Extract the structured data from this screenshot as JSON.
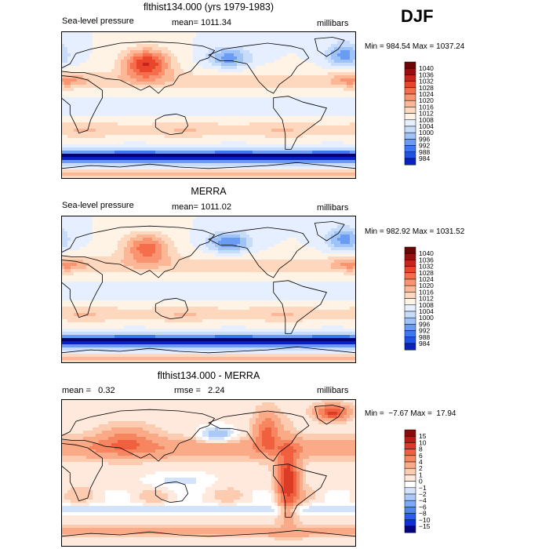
{
  "season": "DJF",
  "colors": {
    "pressure_scale": [
      "#08006e",
      "#0a20c0",
      "#1f52e6",
      "#3c78f0",
      "#6a9cf4",
      "#9fc2f7",
      "#c7dcfa",
      "#e6efff",
      "#fff3e6",
      "#fdd8bf",
      "#fcb896",
      "#fa9470",
      "#f56d4a",
      "#e8452a",
      "#c7241a",
      "#9c0d0d",
      "#6e0505"
    ],
    "anomaly_scale": [
      "#050580",
      "#0d2ed8",
      "#2c5ce9",
      "#5186f0",
      "#7eaaf5",
      "#aac8f8",
      "#d3e3fb",
      "#ffffff",
      "#ffe9dc",
      "#fdcbb0",
      "#fbaa87",
      "#f78560",
      "#f0603f",
      "#dc3b25",
      "#b81c17",
      "#8e0909"
    ]
  },
  "chart_data": [
    {
      "type": "heatmap",
      "title": "flthist134.000 (yrs 1979-1983)",
      "left_label": "Sea-level pressure",
      "mean_label": "mean= 1011.34",
      "units": "millibars",
      "stats": "Min = 984.54 Max = 1037.24",
      "min": 984.54,
      "max": 1037.24,
      "mean": 1011.34,
      "colorbar_ticks": [
        "1040",
        "1036",
        "1032",
        "1028",
        "1024",
        "1020",
        "1016",
        "1012",
        "1008",
        "1004",
        "1000",
        "996",
        "992",
        "988",
        "984"
      ],
      "colorbar_values": [
        1040,
        1036,
        1032,
        1028,
        1024,
        1020,
        1016,
        1012,
        1008,
        1004,
        1000,
        996,
        992,
        988,
        984
      ]
    },
    {
      "type": "heatmap",
      "title": "MERRA",
      "left_label": "Sea-level pressure",
      "mean_label": "mean= 1011.02",
      "units": "millibars",
      "stats": "Min = 982.92 Max = 1031.52",
      "min": 982.92,
      "max": 1031.52,
      "mean": 1011.02,
      "colorbar_ticks": [
        "1040",
        "1036",
        "1032",
        "1028",
        "1024",
        "1020",
        "1016",
        "1012",
        "1008",
        "1004",
        "1000",
        "996",
        "992",
        "988",
        "984"
      ],
      "colorbar_values": [
        1040,
        1036,
        1032,
        1028,
        1024,
        1020,
        1016,
        1012,
        1008,
        1004,
        1000,
        996,
        992,
        988,
        984
      ]
    },
    {
      "type": "heatmap",
      "title": "flthist134.000 - MERRA",
      "left_label": "mean =   0.32",
      "mid_label": "rmse =   2.24",
      "units": "millibars",
      "stats": "Min =  −7.67 Max =  17.94",
      "min": -7.67,
      "max": 17.94,
      "mean": 0.32,
      "rmse": 2.24,
      "colorbar_ticks": [
        "15",
        "10",
        "8",
        "6",
        "4",
        "2",
        "1",
        "0",
        "−1",
        "−2",
        "−4",
        "−6",
        "−8",
        "−10",
        "−15"
      ],
      "colorbar_values": [
        15,
        10,
        8,
        6,
        4,
        2,
        1,
        0,
        -1,
        -2,
        -4,
        -6,
        -8,
        -10,
        -15
      ]
    }
  ]
}
